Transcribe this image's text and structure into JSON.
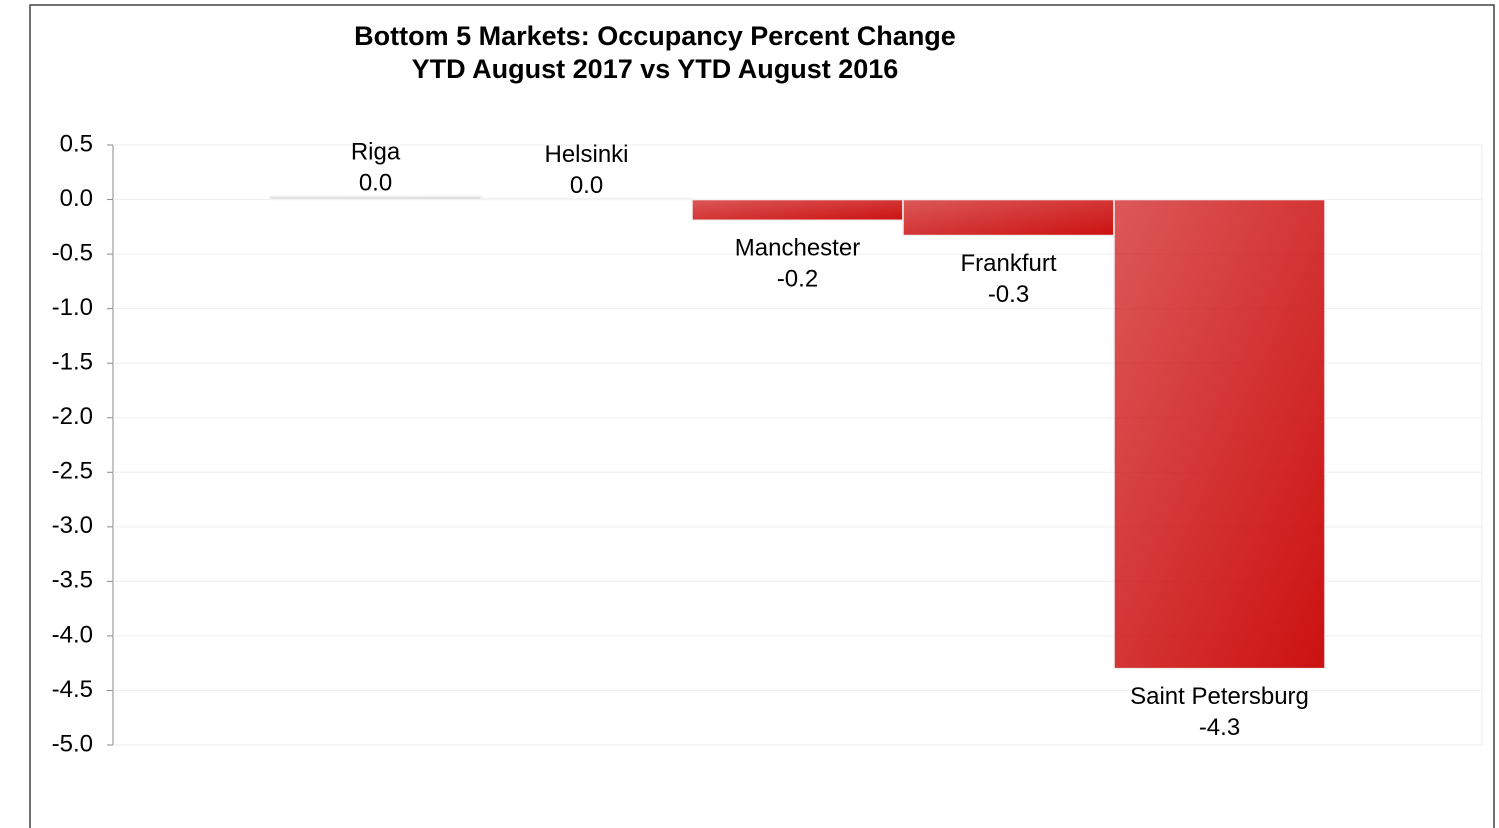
{
  "chart_data": {
    "type": "bar",
    "title": "Bottom 5 Markets: Occupancy Percent Change",
    "subtitle": "YTD August 2017 vs YTD August 2016",
    "categories": [
      "Riga",
      "Helsinki",
      "Manchester",
      "Frankfurt",
      "Saint Petersburg"
    ],
    "values": [
      0.03,
      0.01,
      -0.19,
      -0.33,
      -4.3
    ],
    "value_labels": [
      "0.0",
      "0.0",
      "-0.2",
      "-0.3",
      "-4.3"
    ],
    "colors": [
      "#d9d9d9",
      "#d9d9d9",
      "#cc1111",
      "#cc1111",
      "#cc1111"
    ],
    "ylim": [
      -5.0,
      0.5
    ],
    "yticks": [
      0.5,
      {
        "value": 0,
        "label": "0.0"
      },
      -0.5,
      {
        "value": -1,
        "label": "-1.0"
      },
      -1.5,
      {
        "value": -2,
        "label": "-2.0"
      },
      -2.5,
      {
        "value": -3,
        "label": "-3.0"
      },
      -3.5,
      {
        "value": -4,
        "label": "-4.0"
      },
      -4.5,
      {
        "value": -5,
        "label": "-5.0"
      }
    ],
    "grid": true
  }
}
